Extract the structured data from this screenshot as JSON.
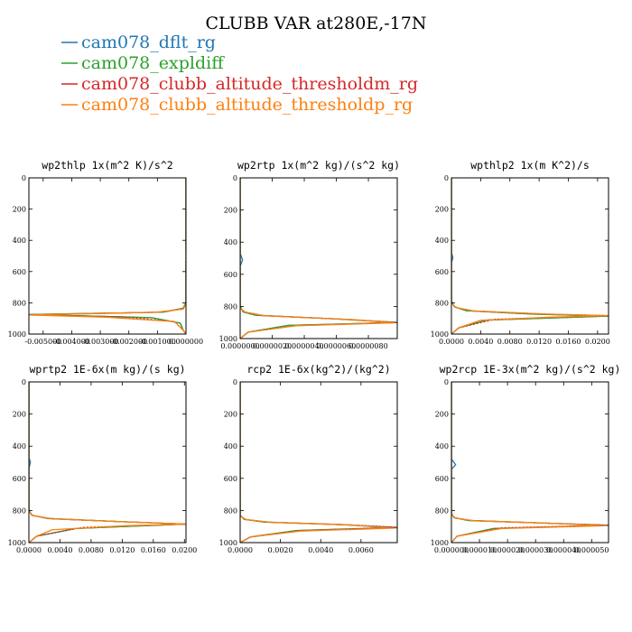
{
  "figure_title": "CLUBB VAR at280E,-17N",
  "legend": [
    {
      "label": "cam078_dflt_rg",
      "color": "#1f77b4"
    },
    {
      "label": "cam078_expldiff",
      "color": "#2ca02c"
    },
    {
      "label": "cam078_clubb_altitude_thresholdm_rg",
      "color": "#d62728"
    },
    {
      "label": "cam078_clubb_altitude_thresholdp_rg",
      "color": "#ff7f0e"
    }
  ],
  "chart_data": [
    {
      "type": "line",
      "title": "wp2thlp   1x(m^2 K)/s^2",
      "xlim": [
        -0.0055,
        0.0
      ],
      "ylim": [
        0,
        1000
      ],
      "y_inverted": true,
      "x_ticks": [
        -0.005,
        -0.004,
        -0.003,
        -0.002,
        -0.001,
        0.0
      ],
      "x_tick_labels": [
        "-0.005000",
        "-0.004000",
        "-0.003000",
        "-0.002000",
        "-0.001000",
        "0.000000"
      ],
      "y_ticks": [
        0,
        200,
        400,
        600,
        800,
        1000
      ],
      "y_tick_labels": [
        "0",
        "200",
        "400",
        "600",
        "800",
        "1000"
      ],
      "series": [
        {
          "name": "cam078_dflt_rg",
          "x": [
            0,
            0,
            2e-05,
            0,
            0,
            -0.0001,
            -0.0008,
            -0.0055,
            -0.0012,
            -0.0002,
            -0.0001,
            0
          ],
          "y": [
            0,
            470,
            505,
            540,
            800,
            835,
            860,
            875,
            895,
            930,
            975,
            1000
          ]
        },
        {
          "name": "cam078_expldiff",
          "x": [
            0,
            0,
            0,
            -0.0001,
            -0.0008,
            -0.0055,
            -0.0012,
            -0.0002,
            -0.0001,
            0
          ],
          "y": [
            0,
            500,
            800,
            835,
            860,
            875,
            895,
            930,
            975,
            1000
          ]
        },
        {
          "name": "cam078_clubb_altitude_thresholdm_rg",
          "x": [
            0,
            0,
            0,
            -0.0001,
            -0.001,
            -0.0055,
            -0.0022,
            -0.0004,
            -0.0001,
            0
          ],
          "y": [
            0,
            500,
            810,
            840,
            860,
            878,
            890,
            920,
            975,
            1000
          ]
        },
        {
          "name": "cam078_clubb_altitude_thresholdp_rg",
          "x": [
            0,
            0,
            0,
            -0.0001,
            -0.001,
            -0.0055,
            -0.0028,
            -0.0004,
            -0.0001,
            0
          ],
          "y": [
            0,
            500,
            810,
            840,
            860,
            878,
            892,
            920,
            975,
            1000
          ]
        }
      ]
    },
    {
      "type": "line",
      "title": "wp2rtp   1x(m^2 kg)/(s^2 kg)",
      "xlim": [
        0.0,
        9.8e-06
      ],
      "ylim": [
        0,
        1000
      ],
      "y_inverted": true,
      "x_ticks": [
        0.0,
        2e-06,
        4e-06,
        6e-06,
        8e-06
      ],
      "x_tick_labels": [
        "0.0000000",
        "0.0000020",
        "0.0000040",
        "0.0000060",
        "0.0000080"
      ],
      "y_ticks": [
        0,
        200,
        400,
        600,
        800,
        1000
      ],
      "y_tick_labels": [
        "0",
        "200",
        "400",
        "600",
        "800",
        "1000"
      ],
      "series": [
        {
          "name": "cam078_dflt_rg",
          "x": [
            0,
            0,
            1.5e-07,
            0,
            0,
            2e-07,
            1e-06,
            6e-06,
            9.8e-06,
            3e-06,
            5e-07,
            0
          ],
          "y": [
            0,
            470,
            510,
            550,
            800,
            835,
            855,
            878,
            900,
            918,
            960,
            1000
          ]
        },
        {
          "name": "cam078_expldiff",
          "x": [
            0,
            0,
            0,
            2e-07,
            1e-06,
            6e-06,
            9.8e-06,
            3e-06,
            5e-07,
            0
          ],
          "y": [
            0,
            500,
            800,
            835,
            855,
            878,
            900,
            918,
            960,
            1000
          ]
        },
        {
          "name": "cam078_clubb_altitude_thresholdm_rg",
          "x": [
            0,
            0,
            0,
            3e-07,
            1.5e-06,
            7e-06,
            9.8e-06,
            3.5e-06,
            5e-07,
            0
          ],
          "y": [
            0,
            500,
            810,
            835,
            858,
            882,
            900,
            920,
            960,
            1000
          ]
        },
        {
          "name": "cam078_clubb_altitude_thresholdp_rg",
          "x": [
            0,
            0,
            0,
            3e-07,
            1.5e-06,
            7e-06,
            9.6e-06,
            3.5e-06,
            5e-07,
            0
          ],
          "y": [
            0,
            500,
            810,
            835,
            858,
            882,
            902,
            920,
            960,
            1000
          ]
        }
      ]
    },
    {
      "type": "line",
      "title": "wpthlp2   1x(m K^2)/s",
      "xlim": [
        0.0,
        0.0215
      ],
      "ylim": [
        0,
        1000
      ],
      "y_inverted": true,
      "x_ticks": [
        0.0,
        0.004,
        0.008,
        0.012,
        0.016,
        0.02
      ],
      "x_tick_labels": [
        "0.0000",
        "0.0040",
        "0.0080",
        "0.0120",
        "0.0160",
        "0.0200"
      ],
      "y_ticks": [
        0,
        200,
        400,
        600,
        800,
        1000
      ],
      "y_tick_labels": [
        "0",
        "200",
        "400",
        "600",
        "800",
        "1000"
      ],
      "series": [
        {
          "name": "cam078_dflt_rg",
          "x": [
            0,
            0,
            0.0002,
            0,
            0,
            0.0004,
            0.002,
            0.011,
            0.0215,
            0.005,
            0.001,
            0
          ],
          "y": [
            0,
            480,
            510,
            545,
            790,
            825,
            850,
            872,
            885,
            910,
            960,
            1000
          ]
        },
        {
          "name": "cam078_expldiff",
          "x": [
            0,
            0,
            0,
            0.0004,
            0.002,
            0.011,
            0.0215,
            0.005,
            0.001,
            0
          ],
          "y": [
            0,
            500,
            790,
            825,
            850,
            872,
            885,
            910,
            960,
            1000
          ]
        },
        {
          "name": "cam078_clubb_altitude_thresholdm_rg",
          "x": [
            0,
            0,
            0,
            0.0006,
            0.003,
            0.013,
            0.0215,
            0.006,
            0.001,
            0
          ],
          "y": [
            0,
            500,
            800,
            830,
            852,
            872,
            882,
            905,
            960,
            1000
          ]
        },
        {
          "name": "cam078_clubb_altitude_thresholdp_rg",
          "x": [
            0,
            0,
            0,
            0.0006,
            0.003,
            0.013,
            0.0215,
            0.0136,
            0.004,
            0.001,
            0
          ],
          "y": [
            0,
            500,
            800,
            830,
            852,
            872,
            882,
            892,
            912,
            960,
            1000
          ]
        }
      ]
    },
    {
      "type": "line",
      "title": "wprtp2   1E-6x(m kg)/(s kg)",
      "xlim": [
        0.0,
        0.0202
      ],
      "ylim": [
        0,
        1000
      ],
      "y_inverted": true,
      "x_ticks": [
        0.0,
        0.004,
        0.008,
        0.012,
        0.016,
        0.02
      ],
      "x_tick_labels": [
        "0.0000",
        "0.0040",
        "0.0080",
        "0.0120",
        "0.0160",
        "0.0200"
      ],
      "y_ticks": [
        0,
        200,
        400,
        600,
        800,
        1000
      ],
      "y_tick_labels": [
        "0",
        "200",
        "400",
        "600",
        "800",
        "1000"
      ],
      "series": [
        {
          "name": "cam078_dflt_rg",
          "x": [
            0,
            0,
            0.0002,
            0,
            0,
            0.0004,
            0.0025,
            0.011,
            0.0202,
            0.006,
            0.001,
            0
          ],
          "y": [
            0,
            470,
            500,
            540,
            800,
            830,
            850,
            868,
            885,
            912,
            960,
            1000
          ]
        },
        {
          "name": "cam078_expldiff",
          "x": [
            0,
            0,
            0,
            0.0004,
            0.0025,
            0.011,
            0.0202,
            0.006,
            0.001,
            0
          ],
          "y": [
            0,
            500,
            800,
            830,
            850,
            868,
            885,
            912,
            960,
            1000
          ]
        },
        {
          "name": "cam078_clubb_altitude_thresholdm_rg",
          "x": [
            0,
            0,
            0,
            0.0005,
            0.003,
            0.012,
            0.0202,
            0.007,
            0.001,
            0
          ],
          "y": [
            0,
            500,
            805,
            832,
            852,
            870,
            885,
            905,
            960,
            1000
          ]
        },
        {
          "name": "cam078_clubb_altitude_thresholdp_rg",
          "x": [
            0,
            0,
            0,
            0.0005,
            0.003,
            0.012,
            0.0202,
            0.0125,
            0.003,
            0.001,
            0
          ],
          "y": [
            0,
            500,
            805,
            832,
            852,
            870,
            885,
            895,
            920,
            960,
            1000
          ]
        }
      ]
    },
    {
      "type": "line",
      "title": "rcp2   1E-6x(kg^2)/(kg^2)",
      "xlim": [
        0.0,
        0.0078
      ],
      "ylim": [
        0,
        1000
      ],
      "y_inverted": true,
      "x_ticks": [
        0.0,
        0.002,
        0.004,
        0.006
      ],
      "x_tick_labels": [
        "0.0000",
        "0.0020",
        "0.0040",
        "0.0060"
      ],
      "y_ticks": [
        0,
        200,
        400,
        600,
        800,
        1000
      ],
      "y_tick_labels": [
        "0",
        "200",
        "400",
        "600",
        "800",
        "1000"
      ],
      "series": [
        {
          "name": "cam078_dflt_rg",
          "x": [
            0,
            0,
            0,
            0.0002,
            0.0012,
            0.005,
            0.0078,
            0.0028,
            0.0005,
            0
          ],
          "y": [
            0,
            500,
            830,
            855,
            872,
            888,
            905,
            925,
            965,
            1000
          ]
        },
        {
          "name": "cam078_expldiff",
          "x": [
            0,
            0,
            0,
            0.0002,
            0.0012,
            0.005,
            0.0078,
            0.0028,
            0.0005,
            0
          ],
          "y": [
            0,
            500,
            830,
            855,
            872,
            888,
            908,
            925,
            965,
            1000
          ]
        },
        {
          "name": "cam078_clubb_altitude_thresholdm_rg",
          "x": [
            0,
            0,
            0,
            0.0003,
            0.0015,
            0.0055,
            0.0078,
            0.003,
            0.0005,
            0
          ],
          "y": [
            0,
            500,
            835,
            857,
            873,
            890,
            905,
            925,
            965,
            1000
          ]
        },
        {
          "name": "cam078_clubb_altitude_thresholdp_rg",
          "x": [
            0,
            0,
            0,
            0.0003,
            0.0015,
            0.0055,
            0.0076,
            0.003,
            0.0005,
            0
          ],
          "y": [
            0,
            500,
            835,
            857,
            873,
            890,
            910,
            928,
            965,
            1000
          ]
        }
      ]
    },
    {
      "type": "line",
      "title": "wp2rcp   1E-3x(m^2 kg)/(s^2 kg)",
      "xlim": [
        0.0,
        5.6e-05
      ],
      "ylim": [
        0,
        1000
      ],
      "y_inverted": true,
      "x_ticks": [
        0.0,
        1e-05,
        2e-05,
        3e-05,
        4e-05,
        5e-05
      ],
      "x_tick_labels": [
        "0.000000",
        "0.000010",
        "0.000020",
        "0.000030",
        "0.000040",
        "0.000050"
      ],
      "y_ticks": [
        0,
        200,
        400,
        600,
        800,
        1000
      ],
      "y_tick_labels": [
        "0",
        "200",
        "400",
        "600",
        "800",
        "1000"
      ],
      "series": [
        {
          "name": "cam078_dflt_rg",
          "x": [
            0,
            0,
            1.5e-06,
            0,
            0,
            1e-06,
            6e-06,
            3.2e-05,
            5.6e-05,
            1.5e-05,
            2e-06,
            0
          ],
          "y": [
            0,
            480,
            515,
            545,
            820,
            845,
            862,
            878,
            892,
            912,
            960,
            1000
          ]
        },
        {
          "name": "cam078_expldiff",
          "x": [
            0,
            0,
            0,
            1e-06,
            6e-06,
            3.2e-05,
            5.6e-05,
            1.5e-05,
            2e-06,
            0
          ],
          "y": [
            0,
            500,
            820,
            845,
            862,
            878,
            892,
            912,
            960,
            1000
          ]
        },
        {
          "name": "cam078_clubb_altitude_thresholdm_rg",
          "x": [
            0,
            0,
            0,
            1.5e-06,
            8e-06,
            3.6e-05,
            5.6e-05,
            1.8e-05,
            2e-06,
            0
          ],
          "y": [
            0,
            500,
            825,
            848,
            864,
            880,
            892,
            908,
            960,
            1000
          ]
        },
        {
          "name": "cam078_clubb_altitude_thresholdp_rg",
          "x": [
            0,
            0,
            0,
            1.5e-06,
            8e-06,
            3.6e-05,
            5.4e-05,
            1.8e-05,
            2e-06,
            0
          ],
          "y": [
            0,
            500,
            825,
            848,
            864,
            880,
            895,
            912,
            960,
            1000
          ]
        }
      ]
    }
  ]
}
